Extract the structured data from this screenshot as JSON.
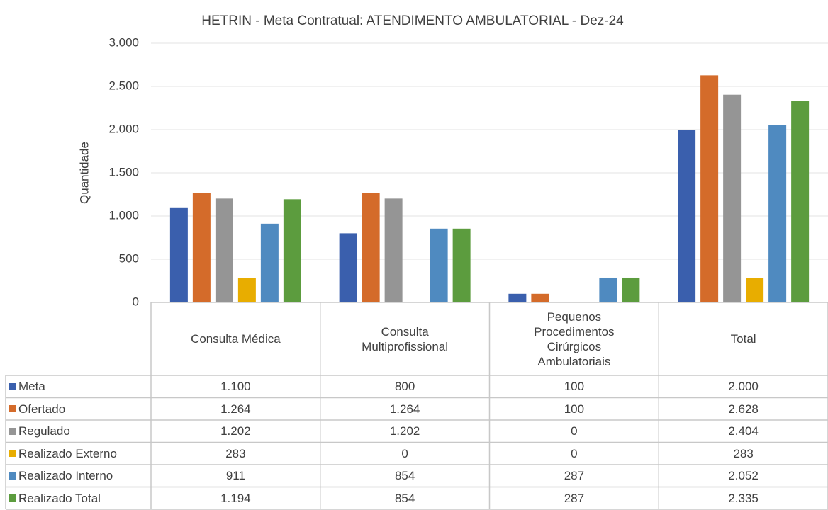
{
  "chart_data": {
    "type": "bar",
    "title": "HETRIN - Meta Contratual: ATENDIMENTO AMBULATORIAL - Dez-24",
    "ylabel": "Quantidade",
    "categories": [
      "Consulta Médica",
      "Consulta Multiprofissional",
      "Pequenos Procedimentos Cirúrgicos Ambulatoriais",
      "Total"
    ],
    "series": [
      {
        "name": "Meta",
        "color": "#3a5fad",
        "values": [
          1100,
          800,
          100,
          2000
        ],
        "value_labels": [
          "1.100",
          "800",
          "100",
          "2.000"
        ]
      },
      {
        "name": "Ofertado",
        "color": "#d46b2a",
        "values": [
          1264,
          1264,
          100,
          2628
        ],
        "value_labels": [
          "1.264",
          "1.264",
          "100",
          "2.628"
        ]
      },
      {
        "name": "Regulado",
        "color": "#959595",
        "values": [
          1202,
          1202,
          0,
          2404
        ],
        "value_labels": [
          "1.202",
          "1.202",
          "0",
          "2.404"
        ]
      },
      {
        "name": "Realizado Externo",
        "color": "#e8ad00",
        "values": [
          283,
          0,
          0,
          283
        ],
        "value_labels": [
          "283",
          "0",
          "0",
          "283"
        ]
      },
      {
        "name": "Realizado Interno",
        "color": "#4f8ac0",
        "values": [
          911,
          854,
          287,
          2052
        ],
        "value_labels": [
          "911",
          "854",
          "287",
          "2.052"
        ]
      },
      {
        "name": "Realizado Total",
        "color": "#5c9c3e",
        "values": [
          1194,
          854,
          287,
          2335
        ],
        "value_labels": [
          "1.194",
          "854",
          "287",
          "2.335"
        ]
      }
    ],
    "ylim": [
      0,
      3000
    ],
    "yticks": [
      0,
      500,
      {
        "value": 1000,
        "label": "1.000"
      },
      {
        "value": 1500,
        "label": "1.500"
      },
      {
        "value": 2000,
        "label": "2.000"
      },
      {
        "value": 2500,
        "label": "2.500"
      },
      {
        "value": 3000,
        "label": "3.000"
      }
    ],
    "grid": true
  }
}
